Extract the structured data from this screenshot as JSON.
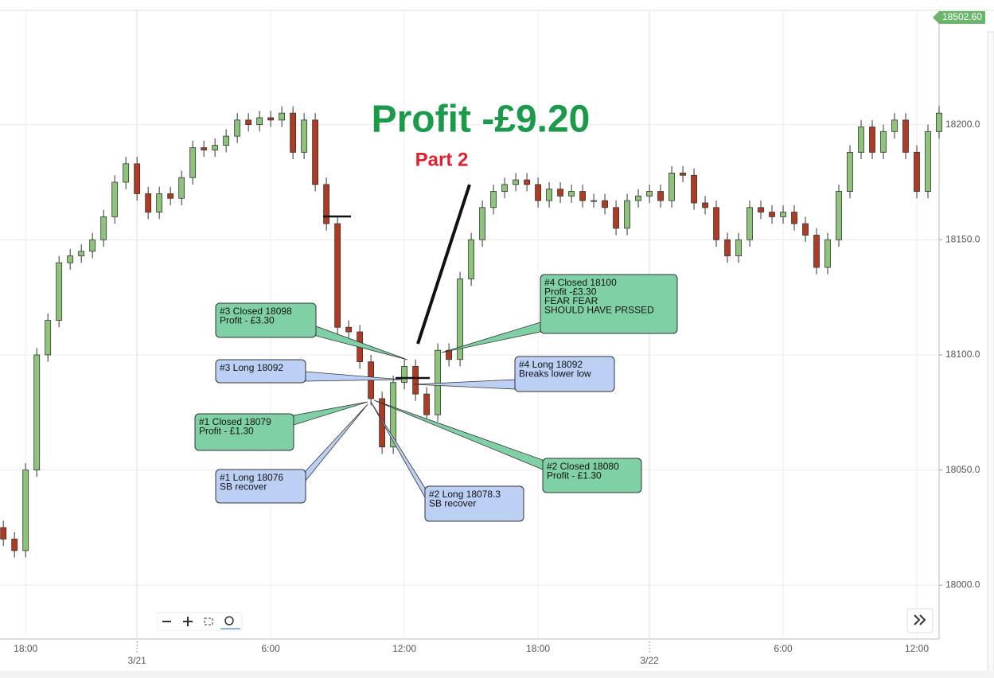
{
  "chart_data": {
    "type": "candlestick",
    "title": "Profit -£9.20",
    "subtitle": "Part 2",
    "price_tag": "18502.60",
    "xlim": [
      -0.3,
      84
    ],
    "ylim": [
      17976.6,
      18249.3
    ],
    "xticks": [
      {
        "value": 2,
        "label": "18:00"
      },
      {
        "value": 24,
        "label": "6:00"
      },
      {
        "value": 36,
        "label": "12:00"
      },
      {
        "value": 48,
        "label": "18:00"
      },
      {
        "value": 70,
        "label": "6:00"
      },
      {
        "value": 82,
        "label": "12:00"
      }
    ],
    "date_ticks": [
      {
        "value": 12,
        "label": "3/21"
      },
      {
        "value": 58,
        "label": "3/22"
      }
    ],
    "yticks": [
      {
        "value": 18000,
        "label": "18000.0"
      },
      {
        "value": 18050,
        "label": "18050.0"
      },
      {
        "value": 18100,
        "label": "18100.0"
      },
      {
        "value": 18150,
        "label": "18150.0"
      },
      {
        "value": 18200,
        "label": "18200.0"
      }
    ],
    "grid": true,
    "up_color": "#8cc47a",
    "down_color": "#b23a22",
    "open": [
      18025,
      18020,
      18015,
      18050,
      18100,
      18115,
      18140,
      18143,
      18145,
      18150,
      18160,
      18175,
      18183,
      18170,
      18162,
      18170,
      18168,
      18177,
      18190,
      18189,
      18191,
      18195,
      18202,
      18200,
      18203,
      18202,
      18205,
      18188,
      18202,
      18174,
      18157,
      18112,
      18110,
      18097,
      18081,
      18060,
      18088,
      18095,
      18083,
      18074,
      18102,
      18098,
      18133,
      18150,
      18164,
      18171,
      18174,
      18176,
      18174,
      18167,
      18172,
      18169,
      18171,
      18167,
      18167,
      18164,
      18155,
      18167,
      18169,
      18171,
      18167,
      18179,
      18178,
      18166,
      18164,
      18150,
      18143,
      18150,
      18164,
      18162,
      18160,
      18162,
      18157,
      18152,
      18138,
      18150,
      18171,
      18188,
      18199,
      18188,
      18197,
      18202,
      18188,
      18171,
      18197
    ],
    "high": [
      18028,
      18023,
      18053,
      18103,
      18118,
      18143,
      18146,
      18148,
      18153,
      18163,
      18178,
      18186,
      18186,
      18173,
      18173,
      18173,
      18180,
      18193,
      18193,
      18194,
      18198,
      18205,
      18205,
      18206,
      18206,
      18208,
      18208,
      18205,
      18205,
      18177,
      18160,
      18115,
      18113,
      18100,
      18084,
      18091,
      18098,
      18098,
      18086,
      18105,
      18105,
      18136,
      18153,
      18167,
      18174,
      18177,
      18179,
      18179,
      18177,
      18175,
      18175,
      18174,
      18174,
      18170,
      18170,
      18167,
      18170,
      18172,
      18174,
      18174,
      18182,
      18182,
      18181,
      18169,
      18167,
      18153,
      18153,
      18167,
      18167,
      18165,
      18165,
      18165,
      18160,
      18155,
      18153,
      18174,
      18191,
      18202,
      18202,
      18200,
      18205,
      18205,
      18191,
      18200,
      18208
    ],
    "low": [
      18017,
      18012,
      18012,
      18047,
      18097,
      18112,
      18137,
      18140,
      18142,
      18147,
      18157,
      18172,
      18167,
      18159,
      18159,
      18165,
      18165,
      18174,
      18186,
      18186,
      18188,
      18192,
      18197,
      18197,
      18199,
      18199,
      18185,
      18185,
      18171,
      18154,
      18109,
      18107,
      18094,
      18078,
      18057,
      18057,
      18085,
      18080,
      18071,
      18071,
      18095,
      18095,
      18130,
      18147,
      18161,
      18168,
      18171,
      18171,
      18164,
      18164,
      18166,
      18166,
      18164,
      18164,
      18161,
      18152,
      18152,
      18164,
      18166,
      18164,
      18164,
      18175,
      18163,
      18161,
      18147,
      18140,
      18140,
      18147,
      18159,
      18157,
      18157,
      18154,
      18149,
      18135,
      18135,
      18147,
      18168,
      18185,
      18185,
      18185,
      18194,
      18185,
      18168,
      18168,
      18194
    ],
    "close": [
      18020,
      18015,
      18050,
      18100,
      18115,
      18140,
      18143,
      18145,
      18150,
      18160,
      18175,
      18183,
      18170,
      18162,
      18170,
      18168,
      18177,
      18190,
      18189,
      18191,
      18195,
      18202,
      18200,
      18203,
      18202,
      18205,
      18188,
      18202,
      18174,
      18157,
      18112,
      18110,
      18097,
      18081,
      18060,
      18088,
      18095,
      18083,
      18074,
      18102,
      18098,
      18133,
      18150,
      18164,
      18171,
      18174,
      18176,
      18174,
      18167,
      18172,
      18169,
      18171,
      18167,
      18167,
      18164,
      18155,
      18167,
      18169,
      18171,
      18167,
      18179,
      18178,
      18166,
      18164,
      18150,
      18143,
      18150,
      18164,
      18162,
      18160,
      18162,
      18157,
      18152,
      18138,
      18150,
      18171,
      18188,
      18199,
      18188,
      18197,
      18202,
      18188,
      18171,
      18197,
      18205
    ],
    "annotations": [
      {
        "kind": "closed",
        "lines": [
          "#3 Closed 18098",
          "Profit - £3.30"
        ]
      },
      {
        "kind": "long",
        "lines": [
          "#3 Long 18092"
        ]
      },
      {
        "kind": "closed",
        "lines": [
          "#1 Closed 18079",
          "Profit - £1.30"
        ]
      },
      {
        "kind": "long",
        "lines": [
          "#1 Long 18076",
          "SB recover"
        ]
      },
      {
        "kind": "long",
        "lines": [
          "#2 Long 18078.3",
          "SB recover"
        ]
      },
      {
        "kind": "closed",
        "lines": [
          "#2 Closed 18080",
          "Profit - £1.30"
        ]
      },
      {
        "kind": "closed",
        "lines": [
          "#4 Closed 18100",
          "Profit -£3.30",
          "FEAR FEAR",
          "SHOULD HAVE PRSSED"
        ]
      },
      {
        "kind": "long",
        "lines": [
          "#4 Long 18092",
          "Breaks lower low"
        ]
      }
    ]
  }
}
